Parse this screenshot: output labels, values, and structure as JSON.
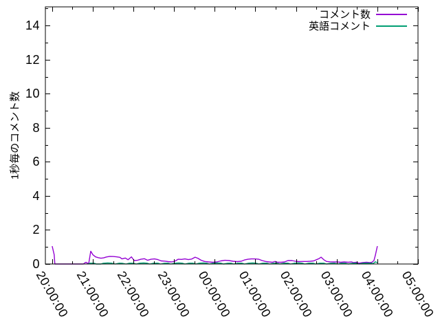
{
  "chart_data": {
    "type": "line",
    "title": "",
    "xlabel": "",
    "ylabel": "1秒毎のコメント数",
    "background_color": "#ffffff",
    "frame_color": "#000000",
    "grid": false,
    "x_axis": {
      "unit": "time (hh:mm:ss)",
      "tick_labels": [
        "20:00:00",
        "21:00:00",
        "22:00:00",
        "23:00:00",
        "00:00:00",
        "01:00:00",
        "02:00:00",
        "03:00:00",
        "04:00:00",
        "05:00:00"
      ],
      "tick_minutes": [
        0,
        60,
        120,
        180,
        240,
        300,
        360,
        420,
        480,
        540
      ],
      "minor_tick_every_minutes": 30,
      "xlim_minutes": [
        -10,
        540
      ],
      "label_rotation_deg": 60
    },
    "y_axis": {
      "tick_labels": [
        "0",
        "2",
        "4",
        "6",
        "8",
        "10",
        "12",
        "14"
      ],
      "ticks": [
        0,
        2,
        4,
        6,
        8,
        10,
        12,
        14
      ],
      "minor_ticks": [
        1,
        3,
        5,
        7,
        9,
        11,
        13,
        15
      ],
      "ylim": [
        0,
        15.1
      ]
    },
    "legend": {
      "position": "top-right-inside",
      "entries": [
        "コメント数",
        "英語コメント"
      ]
    },
    "series": [
      {
        "name": "コメント数",
        "color": "#9400d3",
        "points": [
          [
            0,
            1.05
          ],
          [
            3,
            0.55
          ],
          [
            4,
            0
          ],
          [
            10,
            0
          ],
          [
            20,
            0
          ],
          [
            30,
            0
          ],
          [
            40,
            0
          ],
          [
            46,
            0
          ],
          [
            48,
            0.06
          ],
          [
            50,
            0.1
          ],
          [
            52,
            0.05
          ],
          [
            54,
            0.04
          ],
          [
            57,
            0.75
          ],
          [
            60,
            0.55
          ],
          [
            64,
            0.42
          ],
          [
            68,
            0.37
          ],
          [
            72,
            0.34
          ],
          [
            76,
            0.36
          ],
          [
            80,
            0.41
          ],
          [
            85,
            0.45
          ],
          [
            90,
            0.44
          ],
          [
            95,
            0.42
          ],
          [
            100,
            0.39
          ],
          [
            103,
            0.3
          ],
          [
            108,
            0.35
          ],
          [
            112,
            0.25
          ],
          [
            117,
            0.42
          ],
          [
            121,
            0.2
          ],
          [
            126,
            0.22
          ],
          [
            131,
            0.28
          ],
          [
            136,
            0.31
          ],
          [
            141,
            0.22
          ],
          [
            146,
            0.28
          ],
          [
            151,
            0.3
          ],
          [
            156,
            0.26
          ],
          [
            161,
            0.18
          ],
          [
            166,
            0.17
          ],
          [
            171,
            0.14
          ],
          [
            176,
            0.12
          ],
          [
            181,
            0.16
          ],
          [
            186,
            0.28
          ],
          [
            191,
            0.27
          ],
          [
            196,
            0.3
          ],
          [
            201,
            0.26
          ],
          [
            206,
            0.29
          ],
          [
            211,
            0.4
          ],
          [
            215,
            0.34
          ],
          [
            220,
            0.22
          ],
          [
            225,
            0.15
          ],
          [
            231,
            0.12
          ],
          [
            237,
            0.1
          ],
          [
            243,
            0.12
          ],
          [
            249,
            0.18
          ],
          [
            255,
            0.22
          ],
          [
            261,
            0.2
          ],
          [
            267,
            0.16
          ],
          [
            273,
            0.14
          ],
          [
            279,
            0.16
          ],
          [
            284,
            0.24
          ],
          [
            289,
            0.28
          ],
          [
            294,
            0.3
          ],
          [
            299,
            0.3
          ],
          [
            305,
            0.28
          ],
          [
            310,
            0.2
          ],
          [
            315,
            0.15
          ],
          [
            320,
            0.12
          ],
          [
            325,
            0.1
          ],
          [
            329,
            0.15
          ],
          [
            333,
            0.1
          ],
          [
            338,
            0.1
          ],
          [
            343,
            0.12
          ],
          [
            348,
            0.2
          ],
          [
            354,
            0.2
          ],
          [
            359,
            0.16
          ],
          [
            364,
            0.14
          ],
          [
            370,
            0.15
          ],
          [
            376,
            0.15
          ],
          [
            381,
            0.16
          ],
          [
            386,
            0.18
          ],
          [
            390,
            0.25
          ],
          [
            394,
            0.32
          ],
          [
            397,
            0.4
          ],
          [
            401,
            0.25
          ],
          [
            405,
            0.15
          ],
          [
            410,
            0.13
          ],
          [
            415,
            0.12
          ],
          [
            420,
            0.12
          ],
          [
            426,
            0.1
          ],
          [
            431,
            0.12
          ],
          [
            437,
            0.1
          ],
          [
            442,
            0.12
          ],
          [
            445,
            0.08
          ],
          [
            449,
            0.1
          ],
          [
            453,
            0.05
          ],
          [
            458,
            0.08
          ],
          [
            464,
            0.1
          ],
          [
            469,
            0.08
          ],
          [
            472,
            0.1
          ],
          [
            475,
            0.2
          ],
          [
            477,
            0.5
          ],
          [
            480,
            1.05
          ]
        ]
      },
      {
        "name": "英語コメント",
        "color": "#009e73",
        "points": [
          [
            53,
            0
          ],
          [
            56,
            0.05
          ],
          [
            62,
            0.05
          ],
          [
            65,
            0
          ],
          [
            72,
            0
          ],
          [
            75,
            0.04
          ],
          [
            82,
            0.06
          ],
          [
            88,
            0.05
          ],
          [
            93,
            0
          ],
          [
            99,
            0.05
          ],
          [
            104,
            0.04
          ],
          [
            109,
            0
          ],
          [
            114,
            0.05
          ],
          [
            120,
            0.05
          ],
          [
            124,
            0
          ],
          [
            129,
            0.05
          ],
          [
            135,
            0.06
          ],
          [
            140,
            0.05
          ],
          [
            144,
            0
          ],
          [
            150,
            0.05
          ],
          [
            156,
            0.05
          ],
          [
            160,
            0
          ],
          [
            165,
            0.04
          ],
          [
            171,
            0.05
          ],
          [
            175,
            0
          ],
          [
            181,
            0.05
          ],
          [
            187,
            0.06
          ],
          [
            192,
            0.05
          ],
          [
            196,
            0
          ],
          [
            202,
            0.05
          ],
          [
            208,
            0.05
          ],
          [
            212,
            0
          ],
          [
            217,
            0.05
          ],
          [
            223,
            0.06
          ],
          [
            228,
            0.05
          ],
          [
            232,
            0
          ],
          [
            238,
            0.05
          ],
          [
            244,
            0.06
          ],
          [
            249,
            0.05
          ],
          [
            253,
            0
          ],
          [
            259,
            0.04
          ],
          [
            264,
            0.05
          ],
          [
            268,
            0
          ],
          [
            274,
            0.05
          ],
          [
            280,
            0.05
          ],
          [
            284,
            0
          ],
          [
            290,
            0.05
          ],
          [
            296,
            0.06
          ],
          [
            301,
            0.05
          ],
          [
            305,
            0
          ],
          [
            311,
            0.05
          ],
          [
            317,
            0.05
          ],
          [
            321,
            0
          ],
          [
            326,
            0.04
          ],
          [
            332,
            0.05
          ],
          [
            336,
            0
          ],
          [
            342,
            0.05
          ],
          [
            348,
            0.05
          ],
          [
            352,
            0
          ],
          [
            358,
            0.05
          ],
          [
            364,
            0.06
          ],
          [
            369,
            0.05
          ],
          [
            373,
            0
          ],
          [
            379,
            0.05
          ],
          [
            385,
            0.05
          ],
          [
            389,
            0
          ],
          [
            395,
            0.05
          ],
          [
            401,
            0.05
          ],
          [
            405,
            0
          ],
          [
            411,
            0.04
          ],
          [
            417,
            0.05
          ],
          [
            421,
            0
          ],
          [
            427,
            0.05
          ],
          [
            433,
            0.05
          ],
          [
            437,
            0
          ],
          [
            443,
            0.04
          ],
          [
            449,
            0.05
          ],
          [
            453,
            0
          ],
          [
            459,
            0.05
          ],
          [
            465,
            0.05
          ],
          [
            470,
            0.05
          ],
          [
            474,
            0.03
          ],
          [
            477,
            0.13
          ],
          [
            480,
            0.08
          ]
        ]
      }
    ]
  }
}
